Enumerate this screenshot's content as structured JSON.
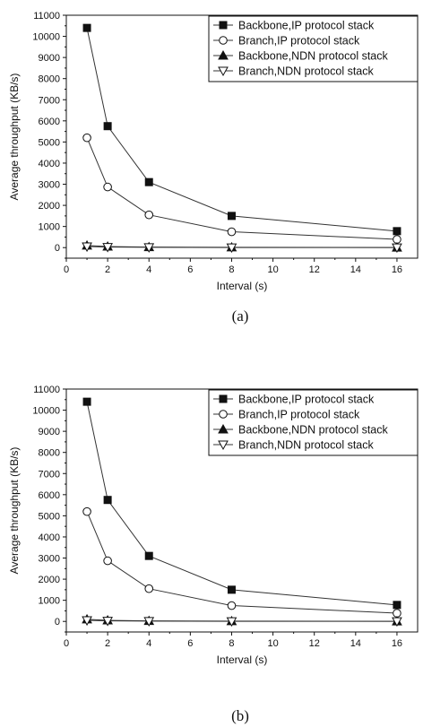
{
  "chart_data": [
    {
      "type": "line",
      "caption": "(a)",
      "xlabel": "Interval (s)",
      "ylabel": "Average throughput (KB/s)",
      "xlim": [
        0,
        17
      ],
      "ylim": [
        -500,
        11000
      ],
      "x_ticks": [
        0,
        2,
        4,
        6,
        8,
        10,
        12,
        14,
        16
      ],
      "y_ticks": [
        0,
        1000,
        2000,
        3000,
        4000,
        5000,
        6000,
        7000,
        8000,
        9000,
        10000,
        11000
      ],
      "legend_position": "top-right",
      "x": [
        1,
        2,
        4,
        8,
        16
      ],
      "series": [
        {
          "name": "Backbone,IP protocol stack",
          "marker": "filled-square",
          "values": [
            10400,
            5750,
            3100,
            1500,
            780
          ]
        },
        {
          "name": "Branch,IP protocol stack",
          "marker": "open-circle",
          "values": [
            5200,
            2870,
            1550,
            750,
            390
          ]
        },
        {
          "name": "Backbone,NDN protocol stack",
          "marker": "filled-triangle-up",
          "values": [
            100,
            50,
            25,
            12,
            6
          ]
        },
        {
          "name": "Branch,NDN protocol stack",
          "marker": "open-triangle-down",
          "values": [
            50,
            25,
            12,
            6,
            3
          ]
        }
      ]
    },
    {
      "type": "line",
      "caption": "(b)",
      "xlabel": "Interval (s)",
      "ylabel": "Average throughput (KB/s)",
      "xlim": [
        0,
        17
      ],
      "ylim": [
        -500,
        11000
      ],
      "x_ticks": [
        0,
        2,
        4,
        6,
        8,
        10,
        12,
        14,
        16
      ],
      "y_ticks": [
        0,
        1000,
        2000,
        3000,
        4000,
        5000,
        6000,
        7000,
        8000,
        9000,
        10000,
        11000
      ],
      "legend_position": "top-right",
      "x": [
        1,
        2,
        4,
        8,
        16
      ],
      "series": [
        {
          "name": "Backbone,IP protocol stack",
          "marker": "filled-square",
          "values": [
            10400,
            5750,
            3100,
            1500,
            780
          ]
        },
        {
          "name": "Branch,IP protocol stack",
          "marker": "open-circle",
          "values": [
            5200,
            2870,
            1550,
            750,
            390
          ]
        },
        {
          "name": "Backbone,NDN protocol stack",
          "marker": "filled-triangle-up",
          "values": [
            100,
            50,
            25,
            12,
            6
          ]
        },
        {
          "name": "Branch,NDN protocol stack",
          "marker": "open-triangle-down",
          "values": [
            50,
            25,
            12,
            6,
            3
          ]
        }
      ]
    }
  ]
}
